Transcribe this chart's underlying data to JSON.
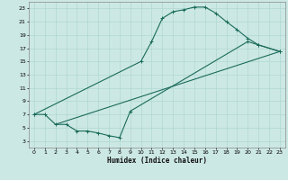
{
  "xlabel": "Humidex (Indice chaleur)",
  "bg_color": "#cce8e4",
  "line_color": "#1a6b5a",
  "grid_color": "#b0d8d2",
  "xlim": [
    -0.5,
    23.5
  ],
  "ylim": [
    2,
    24
  ],
  "xticks": [
    0,
    1,
    2,
    3,
    4,
    5,
    6,
    7,
    8,
    9,
    10,
    11,
    12,
    13,
    14,
    15,
    16,
    17,
    18,
    19,
    20,
    21,
    22,
    23
  ],
  "yticks": [
    3,
    5,
    7,
    9,
    11,
    13,
    15,
    17,
    19,
    21,
    23
  ],
  "line1_x": [
    0,
    10,
    11,
    12,
    13,
    14,
    15,
    16,
    17,
    18,
    19,
    20,
    21,
    23
  ],
  "line1_y": [
    7,
    15,
    18,
    21.5,
    22.5,
    22.8,
    23.2,
    23.2,
    22.3,
    21.0,
    19.8,
    18.5,
    17.5,
    16.5
  ],
  "line2_x": [
    0,
    1,
    2,
    3,
    4,
    5,
    6,
    7,
    8,
    9,
    20,
    21,
    23
  ],
  "line2_y": [
    7,
    7,
    5.5,
    5.5,
    4.5,
    4.5,
    4.2,
    3.8,
    3.5,
    7.5,
    18.0,
    17.5,
    16.5
  ],
  "line3_x": [
    2,
    23
  ],
  "line3_y": [
    5.5,
    16.5
  ]
}
